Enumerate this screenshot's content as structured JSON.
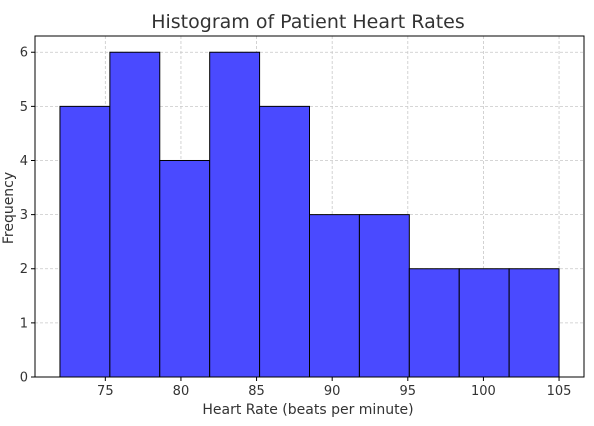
{
  "chart_data": {
    "type": "bar",
    "subtype": "histogram",
    "title": "Histogram of Patient Heart Rates",
    "xlabel": "Heart Rate (beats per minute)",
    "ylabel": "Frequency",
    "bin_edges": [
      72,
      75.3,
      78.6,
      81.9,
      85.2,
      88.5,
      91.8,
      95.1,
      98.4,
      101.7,
      105
    ],
    "values": [
      5,
      6,
      4,
      6,
      5,
      3,
      3,
      2,
      2,
      2
    ],
    "xlim": [
      70.35,
      106.65
    ],
    "ylim": [
      0,
      6.3
    ],
    "xticks": [
      75,
      80,
      85,
      90,
      95,
      100,
      105
    ],
    "yticks": [
      0,
      1,
      2,
      3,
      4,
      5,
      6
    ],
    "bar_color": "#4a4aff",
    "bar_edge_color": "#000000",
    "grid": true,
    "legend": "none"
  }
}
